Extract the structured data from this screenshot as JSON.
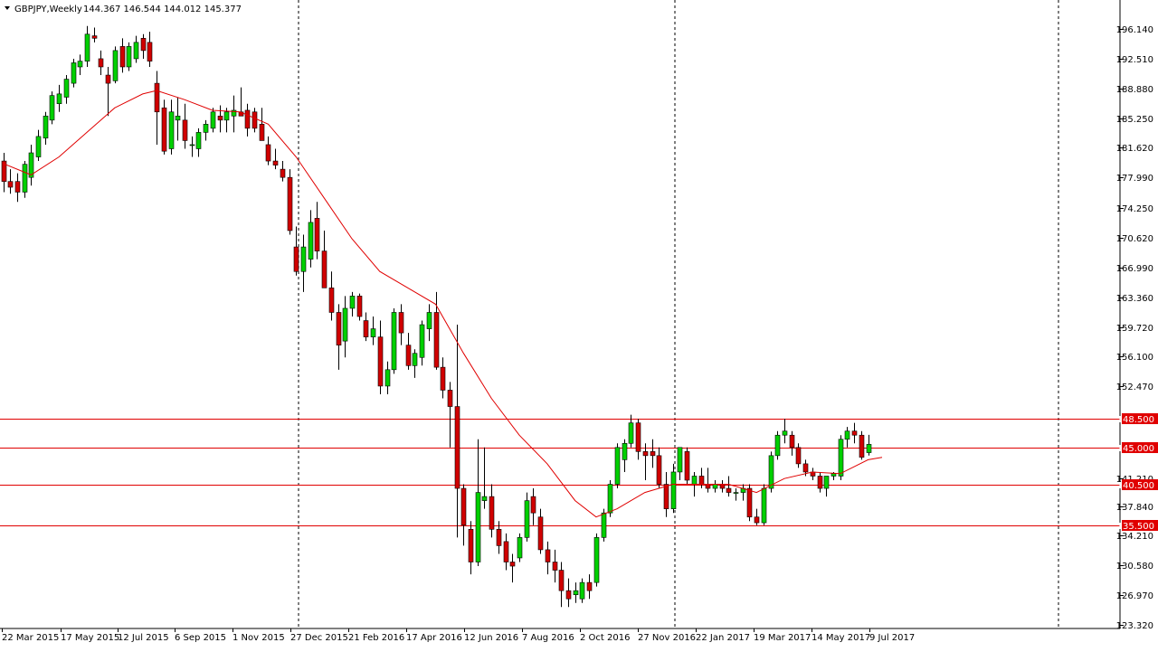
{
  "header": {
    "menu_icon": "triangle-down-icon",
    "symbol": "GBPJPY,Weekly",
    "ohlc": "144.367 146.544 144.012 145.377"
  },
  "colors": {
    "background": "#ffffff",
    "bull_body": "#00d000",
    "bear_body": "#d00000",
    "wick": "#000000",
    "moving_average": "#e00000",
    "level_lines": "#e00000",
    "level_label_bg": "#e00000",
    "level_label_text": "#ffffff",
    "separators": "#000000"
  },
  "chart_data": {
    "type": "candlestick",
    "title": "GBPJPY,Weekly",
    "ylim": [
      123.32,
      199.0
    ],
    "y_ticks": [
      "196.140",
      "192.510",
      "188.880",
      "185.250",
      "181.620",
      "177.990",
      "174.250",
      "170.620",
      "166.990",
      "163.360",
      "159.720",
      "156.100",
      "152.470",
      "148.500",
      "145.000",
      "141.210",
      "140.500",
      "137.840",
      "135.500",
      "134.210",
      "130.580",
      "126.970",
      "123.320"
    ],
    "x_tick_labels": [
      "22 Mar 2015",
      "17 May 2015",
      "12 Jul 2015",
      "6 Sep 2015",
      "1 Nov 2015",
      "27 Dec 2015",
      "21 Feb 2016",
      "17 Apr 2016",
      "12 Jun 2016",
      "7 Aug 2016",
      "2 Oct 2016",
      "27 Nov 2016",
      "22 Jan 2017",
      "19 Mar 2017",
      "14 May 2017",
      "9 Jul 2017"
    ],
    "period_separators": [
      "27 Dec 2015",
      "27 Nov 2016",
      "Jul 2017 end"
    ],
    "horizontal_levels": [
      148.5,
      145.0,
      140.5,
      135.5
    ],
    "level_labels": [
      "148.500",
      "145.000",
      "140.500",
      "135.500"
    ],
    "grid": false,
    "candles": [
      {
        "o": 180.0,
        "h": 181.0,
        "l": 176.2,
        "c": 177.5
      },
      {
        "o": 177.5,
        "h": 179.0,
        "l": 176.0,
        "c": 176.8
      },
      {
        "o": 177.5,
        "h": 178.5,
        "l": 175.0,
        "c": 176.2
      },
      {
        "o": 176.2,
        "h": 180.0,
        "l": 175.5,
        "c": 179.6
      },
      {
        "o": 178.0,
        "h": 182.0,
        "l": 177.0,
        "c": 181.0
      },
      {
        "o": 180.5,
        "h": 183.8,
        "l": 180.0,
        "c": 183.0
      },
      {
        "o": 182.8,
        "h": 186.0,
        "l": 182.0,
        "c": 185.5
      },
      {
        "o": 185.0,
        "h": 188.5,
        "l": 184.5,
        "c": 188.0
      },
      {
        "o": 187.0,
        "h": 189.3,
        "l": 186.0,
        "c": 188.2
      },
      {
        "o": 187.8,
        "h": 190.5,
        "l": 187.0,
        "c": 190.0
      },
      {
        "o": 189.5,
        "h": 192.5,
        "l": 189.0,
        "c": 192.0
      },
      {
        "o": 191.5,
        "h": 193.0,
        "l": 190.5,
        "c": 192.2
      },
      {
        "o": 192.2,
        "h": 196.5,
        "l": 191.5,
        "c": 195.5
      },
      {
        "o": 195.3,
        "h": 196.3,
        "l": 194.5,
        "c": 195.0
      },
      {
        "o": 192.5,
        "h": 193.5,
        "l": 190.5,
        "c": 191.5
      },
      {
        "o": 190.5,
        "h": 191.5,
        "l": 185.5,
        "c": 189.5
      },
      {
        "o": 189.8,
        "h": 194.0,
        "l": 189.5,
        "c": 193.5
      },
      {
        "o": 194.0,
        "h": 195.0,
        "l": 190.8,
        "c": 191.5
      },
      {
        "o": 191.5,
        "h": 194.5,
        "l": 191.0,
        "c": 194.0
      },
      {
        "o": 192.5,
        "h": 195.3,
        "l": 192.0,
        "c": 194.5
      },
      {
        "o": 195.0,
        "h": 195.5,
        "l": 192.5,
        "c": 193.5
      },
      {
        "o": 194.5,
        "h": 195.8,
        "l": 191.5,
        "c": 192.2
      },
      {
        "o": 189.5,
        "h": 191.0,
        "l": 182.0,
        "c": 186.0
      },
      {
        "o": 186.5,
        "h": 187.5,
        "l": 180.8,
        "c": 181.2
      },
      {
        "o": 181.5,
        "h": 187.5,
        "l": 180.8,
        "c": 186.0
      },
      {
        "o": 185.0,
        "h": 187.8,
        "l": 182.5,
        "c": 185.5
      },
      {
        "o": 185.0,
        "h": 187.0,
        "l": 181.5,
        "c": 182.5
      },
      {
        "o": 182.0,
        "h": 183.0,
        "l": 180.5,
        "c": 182.0
      },
      {
        "o": 181.5,
        "h": 184.0,
        "l": 180.5,
        "c": 183.5
      },
      {
        "o": 183.5,
        "h": 185.0,
        "l": 182.5,
        "c": 184.5
      },
      {
        "o": 184.0,
        "h": 186.5,
        "l": 183.5,
        "c": 186.0
      },
      {
        "o": 185.5,
        "h": 186.8,
        "l": 183.5,
        "c": 185.0
      },
      {
        "o": 185.0,
        "h": 186.5,
        "l": 183.5,
        "c": 186.0
      },
      {
        "o": 185.5,
        "h": 188.0,
        "l": 183.5,
        "c": 186.2
      },
      {
        "o": 186.0,
        "h": 189.0,
        "l": 185.5,
        "c": 185.5
      },
      {
        "o": 186.2,
        "h": 187.0,
        "l": 183.0,
        "c": 184.0
      },
      {
        "o": 186.0,
        "h": 186.5,
        "l": 183.5,
        "c": 184.0
      },
      {
        "o": 184.5,
        "h": 186.5,
        "l": 182.5,
        "c": 182.5
      },
      {
        "o": 182.0,
        "h": 183.0,
        "l": 179.5,
        "c": 180.0
      },
      {
        "o": 180.0,
        "h": 181.5,
        "l": 179.0,
        "c": 179.5
      },
      {
        "o": 179.0,
        "h": 180.0,
        "l": 177.5,
        "c": 178.0
      },
      {
        "o": 178.0,
        "h": 179.0,
        "l": 171.0,
        "c": 171.5
      },
      {
        "o": 169.5,
        "h": 172.0,
        "l": 166.0,
        "c": 166.5
      },
      {
        "o": 166.5,
        "h": 171.0,
        "l": 164.0,
        "c": 169.5
      },
      {
        "o": 168.0,
        "h": 174.0,
        "l": 167.0,
        "c": 172.5
      },
      {
        "o": 173.0,
        "h": 175.0,
        "l": 168.0,
        "c": 169.0
      },
      {
        "o": 169.0,
        "h": 171.5,
        "l": 164.5,
        "c": 164.5
      },
      {
        "o": 164.5,
        "h": 166.5,
        "l": 160.5,
        "c": 161.5
      },
      {
        "o": 161.5,
        "h": 162.5,
        "l": 154.5,
        "c": 157.5
      },
      {
        "o": 158.0,
        "h": 163.5,
        "l": 156.0,
        "c": 162.0
      },
      {
        "o": 162.0,
        "h": 164.0,
        "l": 161.0,
        "c": 163.5
      },
      {
        "o": 163.5,
        "h": 163.8,
        "l": 160.5,
        "c": 161.0
      },
      {
        "o": 160.5,
        "h": 161.5,
        "l": 158.0,
        "c": 158.5
      },
      {
        "o": 158.5,
        "h": 161.0,
        "l": 157.5,
        "c": 159.5
      },
      {
        "o": 158.5,
        "h": 160.5,
        "l": 151.5,
        "c": 152.5
      },
      {
        "o": 152.5,
        "h": 155.5,
        "l": 151.5,
        "c": 154.5
      },
      {
        "o": 154.5,
        "h": 162.0,
        "l": 154.0,
        "c": 161.5
      },
      {
        "o": 161.5,
        "h": 162.5,
        "l": 157.5,
        "c": 159.0
      },
      {
        "o": 157.5,
        "h": 159.0,
        "l": 154.5,
        "c": 155.0
      },
      {
        "o": 155.0,
        "h": 157.0,
        "l": 153.5,
        "c": 156.5
      },
      {
        "o": 156.0,
        "h": 160.5,
        "l": 155.0,
        "c": 160.0
      },
      {
        "o": 159.5,
        "h": 162.5,
        "l": 158.0,
        "c": 161.5
      },
      {
        "o": 161.5,
        "h": 164.0,
        "l": 154.5,
        "c": 154.8
      },
      {
        "o": 154.8,
        "h": 156.0,
        "l": 151.0,
        "c": 152.0
      },
      {
        "o": 152.0,
        "h": 153.0,
        "l": 145.0,
        "c": 150.0
      },
      {
        "o": 150.0,
        "h": 160.0,
        "l": 134.0,
        "c": 140.0
      },
      {
        "o": 140.0,
        "h": 140.5,
        "l": 133.0,
        "c": 135.5
      },
      {
        "o": 135.0,
        "h": 136.0,
        "l": 129.5,
        "c": 131.0
      },
      {
        "o": 131.0,
        "h": 146.0,
        "l": 130.5,
        "c": 139.5
      },
      {
        "o": 138.5,
        "h": 145.0,
        "l": 137.5,
        "c": 139.0
      },
      {
        "o": 139.0,
        "h": 140.5,
        "l": 134.0,
        "c": 135.0
      },
      {
        "o": 135.0,
        "h": 136.0,
        "l": 132.0,
        "c": 133.0
      },
      {
        "o": 133.5,
        "h": 134.5,
        "l": 130.0,
        "c": 131.0
      },
      {
        "o": 131.0,
        "h": 132.0,
        "l": 128.5,
        "c": 130.5
      },
      {
        "o": 131.5,
        "h": 134.5,
        "l": 131.0,
        "c": 134.0
      },
      {
        "o": 134.0,
        "h": 139.5,
        "l": 133.5,
        "c": 138.5
      },
      {
        "o": 139.0,
        "h": 140.0,
        "l": 135.5,
        "c": 137.0
      },
      {
        "o": 136.5,
        "h": 137.5,
        "l": 132.0,
        "c": 132.5
      },
      {
        "o": 132.5,
        "h": 133.5,
        "l": 129.5,
        "c": 131.0
      },
      {
        "o": 131.0,
        "h": 132.5,
        "l": 128.5,
        "c": 130.0
      },
      {
        "o": 130.0,
        "h": 131.0,
        "l": 125.5,
        "c": 127.5
      },
      {
        "o": 127.5,
        "h": 129.0,
        "l": 125.5,
        "c": 126.5
      },
      {
        "o": 127.0,
        "h": 128.5,
        "l": 126.0,
        "c": 127.5
      },
      {
        "o": 126.5,
        "h": 129.0,
        "l": 126.0,
        "c": 128.5
      },
      {
        "o": 128.5,
        "h": 129.5,
        "l": 126.5,
        "c": 127.5
      },
      {
        "o": 128.5,
        "h": 134.5,
        "l": 128.0,
        "c": 134.0
      },
      {
        "o": 134.0,
        "h": 137.5,
        "l": 133.5,
        "c": 137.0
      },
      {
        "o": 137.0,
        "h": 141.0,
        "l": 136.5,
        "c": 140.5
      },
      {
        "o": 140.5,
        "h": 145.5,
        "l": 140.0,
        "c": 145.0
      },
      {
        "o": 143.5,
        "h": 146.0,
        "l": 142.0,
        "c": 145.5
      },
      {
        "o": 145.5,
        "h": 149.0,
        "l": 145.0,
        "c": 148.0
      },
      {
        "o": 148.0,
        "h": 148.5,
        "l": 143.5,
        "c": 144.5
      },
      {
        "o": 144.5,
        "h": 145.5,
        "l": 141.0,
        "c": 144.0
      },
      {
        "o": 144.5,
        "h": 146.0,
        "l": 142.5,
        "c": 144.0
      },
      {
        "o": 144.0,
        "h": 145.0,
        "l": 140.0,
        "c": 140.5
      },
      {
        "o": 140.5,
        "h": 142.0,
        "l": 136.5,
        "c": 137.5
      },
      {
        "o": 137.5,
        "h": 143.0,
        "l": 137.0,
        "c": 142.0
      },
      {
        "o": 142.0,
        "h": 145.0,
        "l": 141.0,
        "c": 145.0
      },
      {
        "o": 144.5,
        "h": 145.0,
        "l": 140.5,
        "c": 141.0
      },
      {
        "o": 140.5,
        "h": 142.0,
        "l": 139.0,
        "c": 141.5
      },
      {
        "o": 141.5,
        "h": 142.5,
        "l": 140.0,
        "c": 140.5
      },
      {
        "o": 140.5,
        "h": 142.5,
        "l": 139.5,
        "c": 140.0
      },
      {
        "o": 140.0,
        "h": 141.0,
        "l": 139.5,
        "c": 140.5
      },
      {
        "o": 140.5,
        "h": 141.0,
        "l": 139.5,
        "c": 140.0
      },
      {
        "o": 140.0,
        "h": 141.5,
        "l": 139.0,
        "c": 139.5
      },
      {
        "o": 139.5,
        "h": 140.0,
        "l": 138.5,
        "c": 139.5
      },
      {
        "o": 139.5,
        "h": 140.5,
        "l": 138.5,
        "c": 140.0
      },
      {
        "o": 140.0,
        "h": 140.5,
        "l": 136.0,
        "c": 136.5
      },
      {
        "o": 136.5,
        "h": 137.5,
        "l": 135.5,
        "c": 135.8
      },
      {
        "o": 135.8,
        "h": 140.5,
        "l": 135.5,
        "c": 140.0
      },
      {
        "o": 140.0,
        "h": 144.5,
        "l": 139.5,
        "c": 144.0
      },
      {
        "o": 144.0,
        "h": 147.0,
        "l": 143.5,
        "c": 146.5
      },
      {
        "o": 146.5,
        "h": 148.5,
        "l": 145.5,
        "c": 147.0
      },
      {
        "o": 146.5,
        "h": 147.0,
        "l": 144.0,
        "c": 145.0
      },
      {
        "o": 145.0,
        "h": 145.5,
        "l": 142.5,
        "c": 143.0
      },
      {
        "o": 143.0,
        "h": 143.5,
        "l": 141.5,
        "c": 142.0
      },
      {
        "o": 142.0,
        "h": 142.5,
        "l": 141.0,
        "c": 141.5
      },
      {
        "o": 141.5,
        "h": 142.0,
        "l": 139.5,
        "c": 140.0
      },
      {
        "o": 140.0,
        "h": 141.5,
        "l": 139.0,
        "c": 141.5
      },
      {
        "o": 141.5,
        "h": 142.0,
        "l": 141.0,
        "c": 141.8
      },
      {
        "o": 141.5,
        "h": 146.5,
        "l": 141.0,
        "c": 146.0
      },
      {
        "o": 146.0,
        "h": 147.5,
        "l": 145.0,
        "c": 147.0
      },
      {
        "o": 147.0,
        "h": 148.0,
        "l": 145.5,
        "c": 146.5
      },
      {
        "o": 146.5,
        "h": 147.0,
        "l": 143.5,
        "c": 143.8
      },
      {
        "o": 144.367,
        "h": 146.544,
        "l": 144.012,
        "c": 145.377
      }
    ],
    "moving_average": [
      {
        "i": 0,
        "v": 179.7
      },
      {
        "i": 4,
        "v": 178.3
      },
      {
        "i": 8,
        "v": 180.5
      },
      {
        "i": 12,
        "v": 183.5
      },
      {
        "i": 16,
        "v": 186.5
      },
      {
        "i": 20,
        "v": 188.2
      },
      {
        "i": 22,
        "v": 188.6
      },
      {
        "i": 26,
        "v": 187.5
      },
      {
        "i": 30,
        "v": 186.2
      },
      {
        "i": 34,
        "v": 186.0
      },
      {
        "i": 38,
        "v": 184.5
      },
      {
        "i": 42,
        "v": 180.5
      },
      {
        "i": 46,
        "v": 175.5
      },
      {
        "i": 50,
        "v": 170.5
      },
      {
        "i": 54,
        "v": 166.5
      },
      {
        "i": 58,
        "v": 164.5
      },
      {
        "i": 62,
        "v": 162.5
      },
      {
        "i": 66,
        "v": 156.5
      },
      {
        "i": 70,
        "v": 151.0
      },
      {
        "i": 74,
        "v": 146.5
      },
      {
        "i": 78,
        "v": 143.0
      },
      {
        "i": 82,
        "v": 138.5
      },
      {
        "i": 85,
        "v": 136.5
      },
      {
        "i": 88,
        "v": 137.5
      },
      {
        "i": 92,
        "v": 139.5
      },
      {
        "i": 96,
        "v": 140.5
      },
      {
        "i": 100,
        "v": 140.5
      },
      {
        "i": 104,
        "v": 140.5
      },
      {
        "i": 108,
        "v": 139.5
      },
      {
        "i": 112,
        "v": 141.2
      },
      {
        "i": 116,
        "v": 142.0
      },
      {
        "i": 120,
        "v": 141.8
      },
      {
        "i": 124,
        "v": 143.5
      },
      {
        "i": 126,
        "v": 143.8
      }
    ]
  }
}
